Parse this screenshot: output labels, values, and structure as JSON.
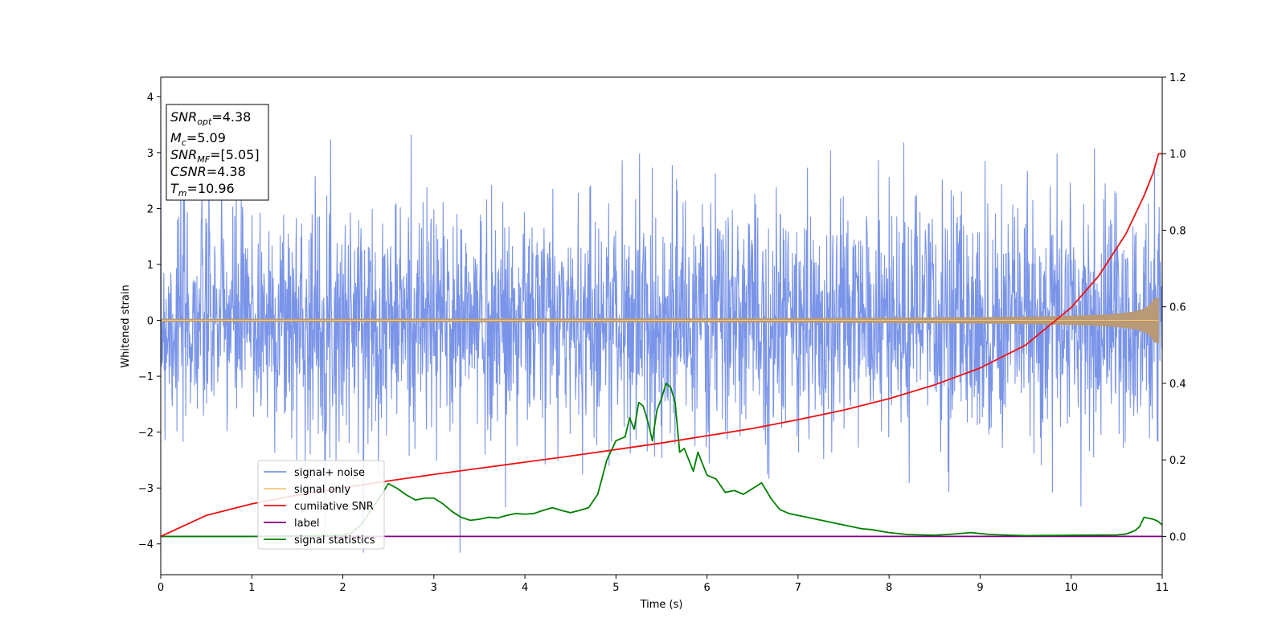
{
  "chart_data": {
    "type": "line",
    "title": "",
    "xlabel": "Time (s)",
    "ylabel": "Whitened strain",
    "xlim": [
      0,
      11
    ],
    "ylim": [
      -4.55,
      4.35
    ],
    "y2lim": [
      -0.1,
      1.2
    ],
    "xticks": [
      "0",
      "1",
      "2",
      "3",
      "4",
      "5",
      "6",
      "7",
      "8",
      "9",
      "10",
      "11"
    ],
    "xtick_values": [
      0,
      1,
      2,
      3,
      4,
      5,
      6,
      7,
      8,
      9,
      10,
      11
    ],
    "yticks": [
      "4",
      "3",
      "2",
      "1",
      "0",
      "−1",
      "−2",
      "−3",
      "−4"
    ],
    "ytick_values": [
      4,
      3,
      2,
      1,
      0,
      -1,
      -2,
      -3,
      -4
    ],
    "y2ticks": [
      "1.2",
      "1.0",
      "0.8",
      "0.6",
      "0.4",
      "0.2",
      "0.0"
    ],
    "y2tick_values": [
      1.2,
      1.0,
      0.8,
      0.6,
      0.4,
      0.2,
      0.0
    ],
    "series": [
      {
        "name": "signal+ noise",
        "color": "#7994e8",
        "axis": "left",
        "kind": "noise",
        "sigma": 1.0,
        "seed": 7
      },
      {
        "name": "signal only",
        "color": "#f5c97a",
        "overlap_color": "#b99a76",
        "axis": "left",
        "kind": "chirp",
        "t_merge": 10.96,
        "amp_start": 0.02,
        "amp_end": 0.4
      },
      {
        "name": "cumilative SNR",
        "color": "#ee1111",
        "axis": "right",
        "x": [
          0,
          0.5,
          1,
          1.5,
          2,
          2.5,
          3,
          3.5,
          4,
          4.5,
          5,
          5.5,
          6,
          6.5,
          7,
          7.5,
          8,
          8.5,
          9,
          9.5,
          10,
          10.3,
          10.6,
          10.8,
          10.9,
          10.96,
          11
        ],
        "values": [
          0.0,
          0.055,
          0.085,
          0.108,
          0.127,
          0.145,
          0.162,
          0.178,
          0.194,
          0.21,
          0.227,
          0.244,
          0.263,
          0.282,
          0.305,
          0.33,
          0.36,
          0.396,
          0.44,
          0.5,
          0.598,
          0.68,
          0.79,
          0.89,
          0.95,
          1.0,
          1.0
        ]
      },
      {
        "name": "label",
        "color": "#800080",
        "axis": "right",
        "x": [
          0,
          11
        ],
        "values": [
          0.0,
          0.0
        ]
      },
      {
        "name": "signal statistics",
        "color": "#008000",
        "axis": "right",
        "x": [
          0,
          1,
          2,
          2.1,
          2.2,
          2.3,
          2.4,
          2.5,
          2.6,
          2.7,
          2.8,
          2.9,
          3.0,
          3.1,
          3.2,
          3.3,
          3.4,
          3.5,
          3.6,
          3.7,
          3.8,
          3.9,
          4.0,
          4.1,
          4.2,
          4.3,
          4.4,
          4.5,
          4.6,
          4.7,
          4.8,
          4.9,
          5.0,
          5.1,
          5.15,
          5.2,
          5.25,
          5.3,
          5.35,
          5.4,
          5.45,
          5.5,
          5.55,
          5.6,
          5.65,
          5.7,
          5.75,
          5.8,
          5.85,
          5.9,
          5.95,
          6.0,
          6.1,
          6.2,
          6.3,
          6.4,
          6.5,
          6.6,
          6.7,
          6.8,
          6.9,
          7.0,
          7.1,
          7.2,
          7.3,
          7.4,
          7.5,
          7.6,
          7.7,
          7.8,
          8.0,
          8.2,
          8.5,
          8.7,
          8.9,
          9.1,
          9.5,
          10.0,
          10.5,
          10.6,
          10.7,
          10.75,
          10.8,
          10.9,
          10.95,
          11.0
        ],
        "values": [
          0.0,
          0.0,
          0.003,
          0.01,
          0.03,
          0.065,
          0.1,
          0.138,
          0.125,
          0.108,
          0.095,
          0.1,
          0.1,
          0.085,
          0.065,
          0.05,
          0.042,
          0.045,
          0.05,
          0.048,
          0.055,
          0.06,
          0.058,
          0.06,
          0.068,
          0.075,
          0.068,
          0.062,
          0.068,
          0.075,
          0.11,
          0.2,
          0.25,
          0.26,
          0.31,
          0.28,
          0.35,
          0.34,
          0.3,
          0.25,
          0.33,
          0.36,
          0.4,
          0.39,
          0.35,
          0.22,
          0.23,
          0.2,
          0.17,
          0.22,
          0.19,
          0.16,
          0.15,
          0.115,
          0.12,
          0.11,
          0.125,
          0.14,
          0.1,
          0.07,
          0.06,
          0.055,
          0.05,
          0.045,
          0.04,
          0.035,
          0.03,
          0.025,
          0.02,
          0.018,
          0.01,
          0.005,
          0.003,
          0.006,
          0.01,
          0.005,
          0.002,
          0.003,
          0.004,
          0.006,
          0.015,
          0.025,
          0.05,
          0.045,
          0.04,
          0.03
        ]
      }
    ],
    "legend": {
      "position": "lower-left",
      "entries": [
        {
          "label": "signal+ noise",
          "color": "#7994e8"
        },
        {
          "label": "signal only",
          "color": "#f5c97a"
        },
        {
          "label": "cumilative SNR",
          "color": "#ee1111"
        },
        {
          "label": "label",
          "color": "#800080"
        },
        {
          "label": "signal statistics",
          "color": "#008000"
        }
      ]
    },
    "annotation": {
      "position": "top-left",
      "lines": [
        {
          "sym": "SNR",
          "sub": "opt",
          "value": "=4.38"
        },
        {
          "sym": "M",
          "sub": "c",
          "value": "=5.09"
        },
        {
          "sym": "SNR",
          "sub": "MF",
          "value": "=[5.05]"
        },
        {
          "sym": "CSNR",
          "sub": "",
          "value": "=4.38"
        },
        {
          "sym": "T",
          "sub": "m",
          "value": "=10.96"
        }
      ]
    }
  }
}
